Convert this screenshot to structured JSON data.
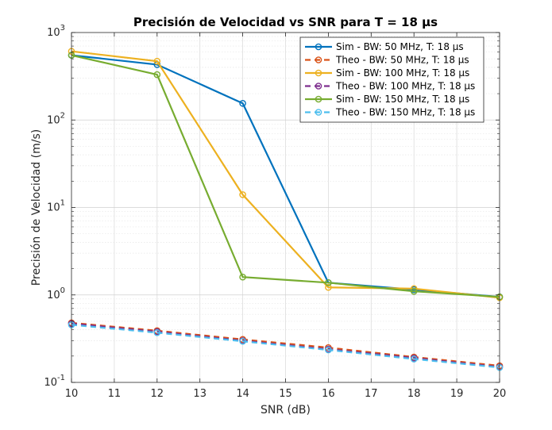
{
  "chart_data": {
    "type": "line",
    "title": "Precisión de Velocidad vs SNR para T = 18 µs",
    "xlabel": "SNR (dB)",
    "ylabel": "Precisión de Velocidad (m/s)",
    "xlim": [
      10,
      20
    ],
    "ylim": [
      0.1,
      1000
    ],
    "yscale": "log",
    "grid": true,
    "minor_grid": true,
    "legend_position": "top-right",
    "x_ticks": [
      "10",
      "11",
      "12",
      "13",
      "14",
      "15",
      "16",
      "17",
      "18",
      "19",
      "20"
    ],
    "y_ticks": [
      {
        "base": "10",
        "exp": "-1"
      },
      {
        "base": "10",
        "exp": "0"
      },
      {
        "base": "10",
        "exp": "1"
      },
      {
        "base": "10",
        "exp": "2"
      },
      {
        "base": "10",
        "exp": "3"
      }
    ],
    "x": [
      10,
      12,
      14,
      16,
      18,
      20
    ],
    "series": [
      {
        "name": "Sim - BW: 50 MHz, T: 18 µs",
        "color": "#0072BD",
        "style": "solid",
        "values": [
          550,
          430,
          155,
          1.38,
          1.15,
          0.95
        ]
      },
      {
        "name": "Theo - BW: 50 MHz, T: 18 µs",
        "color": "#D95319",
        "style": "dashed",
        "values": [
          0.48,
          0.39,
          0.31,
          0.25,
          0.195,
          0.155
        ]
      },
      {
        "name": "Sim - BW: 100 MHz, T: 18 µs",
        "color": "#EDB120",
        "style": "solid",
        "values": [
          610,
          470,
          14,
          1.22,
          1.18,
          0.93
        ]
      },
      {
        "name": "Theo - BW: 100 MHz, T: 18 µs",
        "color": "#7E2F8E",
        "style": "dashed",
        "values": [
          0.47,
          0.38,
          0.3,
          0.24,
          0.19,
          0.15
        ]
      },
      {
        "name": "Sim - BW: 150 MHz, T: 18 µs",
        "color": "#77AC30",
        "style": "solid",
        "values": [
          550,
          330,
          1.6,
          1.38,
          1.1,
          0.95
        ]
      },
      {
        "name": "Theo - BW: 150 MHz, T: 18 µs",
        "color": "#4DBEEE",
        "style": "dashed",
        "values": [
          0.455,
          0.37,
          0.295,
          0.235,
          0.185,
          0.148
        ]
      }
    ]
  }
}
